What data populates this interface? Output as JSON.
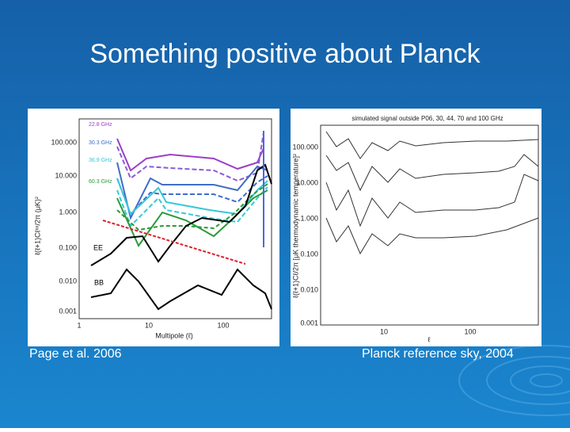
{
  "title": "Something positive about Planck",
  "left_figure": {
    "caption": "Page et al. 2006",
    "y_label": "ℓ(ℓ+1)Cℓˣˣ/2π (μK)²",
    "x_label": "Multipole (ℓ)",
    "y_ticks": [
      "100.000",
      "10.000",
      "1.000",
      "0.100",
      "0.010",
      "0.001"
    ],
    "x_ticks": [
      "1",
      "10",
      "100"
    ],
    "legend": [
      "22.8 GHz",
      "30.3 GHz",
      "36.9 GHz",
      "60.3 GHz"
    ],
    "curve_labels": [
      "EE",
      "BB"
    ]
  },
  "right_figure": {
    "caption": "Planck reference sky, 2004",
    "plot_title": "simulated signal outside P06, 30, 44, 70 and 100 GHz",
    "y_label": "ℓ(ℓ+1)Cℓ/2π [μK thermodynamic temperature]²",
    "x_label": "ℓ",
    "y_ticks": [
      "100.000",
      "10.000",
      "1.000",
      "0.100",
      "0.010",
      "0.001"
    ],
    "x_ticks": [
      "10",
      "100"
    ]
  }
}
